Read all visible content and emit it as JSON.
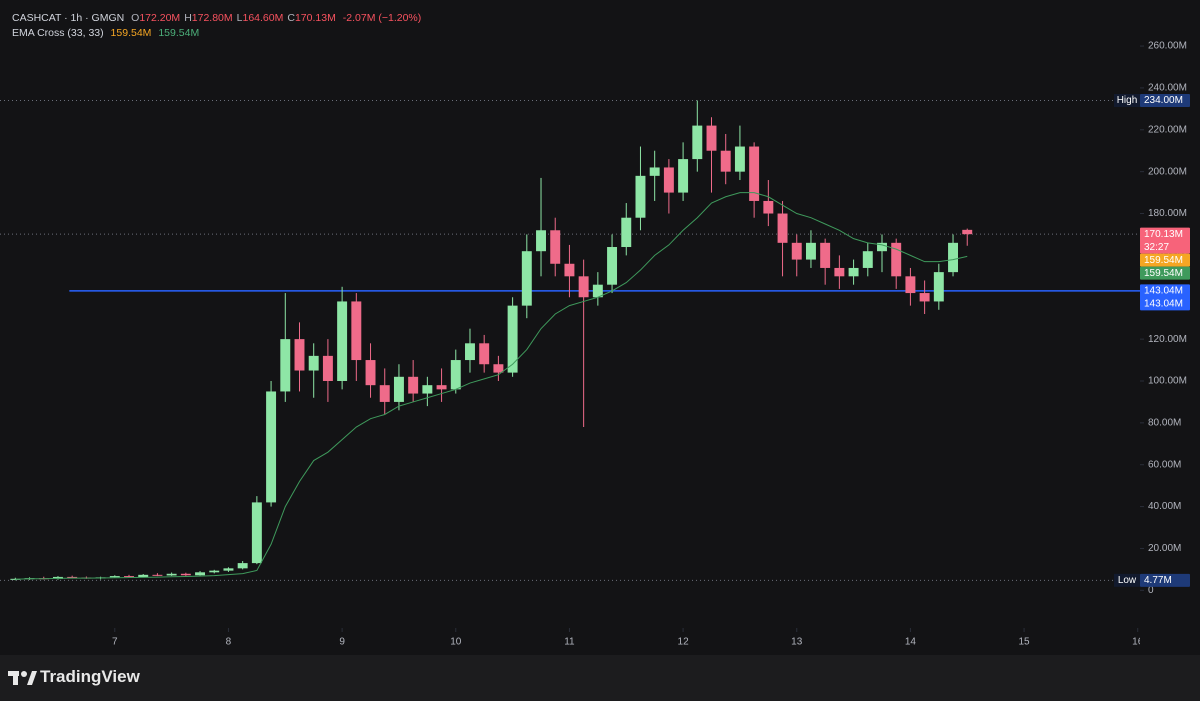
{
  "header": {
    "symbol": "CASHCAT · 1h · GMGN",
    "ohlc": [
      {
        "key": "O",
        "value": "172.20M"
      },
      {
        "key": "H",
        "value": "172.80M"
      },
      {
        "key": "L",
        "value": "164.60M"
      },
      {
        "key": "C",
        "value": "170.13M"
      }
    ],
    "change": "-2.07M (−1.20%)",
    "indicator": "EMA Cross (33, 33)",
    "indicator_values": [
      "159.54M",
      "159.54M"
    ]
  },
  "brand": "TradingView",
  "chart_data": {
    "type": "candlestick",
    "x": [
      6.125,
      6.25,
      6.375,
      6.5,
      6.625,
      6.75,
      6.875,
      7,
      7.125,
      7.25,
      7.375,
      7.5,
      7.625,
      7.75,
      7.875,
      8,
      8.125,
      8.25,
      8.375,
      8.5,
      8.625,
      8.75,
      8.875,
      9,
      9.125,
      9.25,
      9.375,
      9.5,
      9.625,
      9.75,
      9.875,
      10,
      10.125,
      10.25,
      10.375,
      10.5,
      10.625,
      10.75,
      10.875,
      11,
      11.125,
      11.25,
      11.375,
      11.5,
      11.625,
      11.75,
      11.875,
      12,
      12.125,
      12.25,
      12.375,
      12.5,
      12.625,
      12.75,
      12.875,
      13,
      13.125,
      13.25,
      13.375,
      13.5,
      13.625,
      13.75,
      13.875,
      14,
      14.125,
      14.25,
      14.375,
      14.5
    ],
    "open": [
      5,
      5.5,
      5.8,
      5.4,
      6.4,
      6.1,
      5.7,
      6.2,
      6.8,
      6.3,
      7.4,
      7.1,
      7.9,
      7.2,
      8.6,
      9.4,
      10.5,
      13,
      42,
      95,
      120,
      105,
      112,
      100,
      138,
      110,
      98,
      90,
      102,
      94,
      98,
      96,
      110,
      118,
      108,
      104,
      136,
      162,
      172,
      156,
      150,
      140,
      146,
      164,
      178,
      198,
      202,
      190,
      206,
      222,
      210,
      200,
      212,
      186,
      180,
      166,
      158,
      166,
      154,
      150,
      154,
      162,
      166,
      150,
      142,
      138,
      152,
      172.2
    ],
    "high": [
      6,
      6.2,
      6.5,
      6.8,
      7,
      6.6,
      6.5,
      7.2,
      7.4,
      7.8,
      8.2,
      8.5,
      8.4,
      9.2,
      9.8,
      11,
      14,
      45,
      100,
      142,
      128,
      118,
      120,
      145,
      142,
      118,
      106,
      108,
      110,
      102,
      106,
      115,
      125,
      122,
      112,
      140,
      170,
      197,
      178,
      165,
      158,
      152,
      170,
      185,
      212,
      210,
      206,
      214,
      234,
      226,
      218,
      222,
      214,
      196,
      186,
      170,
      172,
      168,
      160,
      158,
      166,
      170,
      168,
      154,
      148,
      156,
      170,
      172.8
    ],
    "low": [
      4.8,
      5,
      5.2,
      5.1,
      5.8,
      5.5,
      5.2,
      5.9,
      6,
      6.1,
      6.8,
      6.9,
      6.9,
      7,
      8.1,
      8.8,
      10,
      12.5,
      40,
      90,
      95,
      92,
      90,
      96,
      100,
      92,
      84,
      86,
      90,
      88,
      90,
      94,
      104,
      104,
      100,
      102,
      130,
      150,
      150,
      140,
      78,
      136,
      142,
      160,
      172,
      186,
      180,
      186,
      200,
      190,
      194,
      196,
      178,
      174,
      150,
      150,
      154,
      146,
      144,
      146,
      150,
      152,
      144,
      136,
      132,
      134,
      150,
      164.6
    ],
    "close": [
      5.5,
      5.8,
      5.4,
      6.4,
      6.1,
      5.7,
      6.2,
      6.8,
      6.3,
      7.4,
      7.1,
      7.9,
      7.2,
      8.6,
      9.4,
      10.5,
      13,
      42,
      95,
      120,
      105,
      112,
      100,
      138,
      110,
      98,
      90,
      102,
      94,
      98,
      96,
      110,
      118,
      108,
      104,
      136,
      162,
      172,
      156,
      150,
      140,
      146,
      164,
      178,
      198,
      202,
      190,
      206,
      222,
      210,
      200,
      212,
      186,
      180,
      166,
      158,
      166,
      154,
      150,
      154,
      162,
      166,
      150,
      142,
      138,
      152,
      166,
      170.13
    ],
    "up_color": "#8ee6a6",
    "down_color": "#ef6b8a",
    "series": [
      {
        "name": "EMA Cross (33, 33)",
        "color": "#3f9a5c",
        "values": [
          5.3,
          5.5,
          5.5,
          5.7,
          5.8,
          5.8,
          5.9,
          6,
          6.1,
          6.2,
          6.3,
          6.5,
          6.6,
          6.8,
          7,
          7.5,
          8,
          9.5,
          22,
          40,
          52,
          62,
          66,
          72,
          78,
          82,
          84,
          88,
          90,
          92,
          94,
          96,
          99,
          101,
          103,
          108,
          115,
          125,
          132,
          136,
          138,
          140,
          143,
          147,
          153,
          160,
          165,
          172,
          178,
          185,
          188,
          190,
          190,
          188,
          184,
          180,
          178,
          175,
          172,
          168,
          166,
          165,
          163,
          160,
          157,
          157,
          158,
          159.54
        ]
      }
    ],
    "xlim": [
      5.99,
      16.02
    ],
    "ylim": [
      -18,
      282
    ],
    "xticks": [
      7,
      8,
      9,
      10,
      11,
      12,
      13,
      14,
      15,
      16
    ],
    "yticks": [
      0,
      {
        "value": 20,
        "label": "20.00M"
      },
      {
        "value": 40,
        "label": "40.00M"
      },
      {
        "value": 60,
        "label": "60.00M"
      },
      {
        "value": 80,
        "label": "80.00M"
      },
      {
        "value": 100,
        "label": "100.00M"
      },
      {
        "value": 120,
        "label": "120.00M"
      },
      {
        "value": 140,
        "label": "140.00M"
      },
      {
        "value": 160,
        "label": "160.00M"
      },
      {
        "value": 180,
        "label": "180.00M"
      },
      {
        "value": 200,
        "label": "200.00M"
      },
      {
        "value": 220,
        "label": "220.00M"
      },
      {
        "value": 240,
        "label": "240.00M"
      },
      {
        "value": 260,
        "label": "260.00M"
      }
    ],
    "grid": false,
    "price_lines": [
      {
        "tag": "High",
        "value": 234,
        "labels": [
          "234.00M"
        ],
        "color": "#1e3a78",
        "style": "dotted"
      },
      {
        "value": 170.13,
        "labels": [
          "170.13M",
          "32:27"
        ],
        "color": "#f7637a",
        "style": "dotted"
      },
      {
        "value": 159.54,
        "labels": [
          "159.54M"
        ],
        "color": "#f5a623",
        "style": "none"
      },
      {
        "value": 159.54,
        "labels": [
          "159.54M"
        ],
        "color": "#3f9a5c",
        "style": "none"
      },
      {
        "value": 143.04,
        "from": 6.6,
        "labels": [
          "143.04M",
          "143.04M"
        ],
        "color": "#2962ff",
        "style": "solid"
      },
      {
        "tag": "Low",
        "value": 4.77,
        "labels": [
          "4.77M"
        ],
        "color": "#1e3a78",
        "style": "dotted"
      }
    ]
  }
}
